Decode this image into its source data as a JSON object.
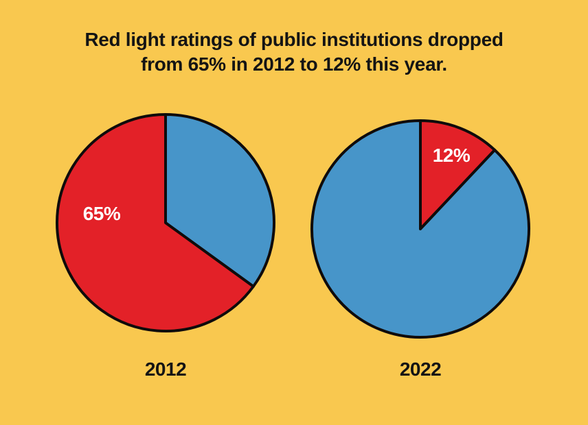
{
  "style": {
    "background_color": "#F9C84F",
    "red": "#E32128",
    "blue": "#4795C9",
    "outline_color": "#0F0B0B",
    "title_color": "#141414",
    "pct_label_color": "#FFFFFF"
  },
  "title": {
    "lines": [
      "Red light ratings of public institutions dropped",
      "from 65% in 2012 to 12% this year."
    ],
    "full": "Red light ratings of public institutions dropped from 65% in 2012 to 12% this year."
  },
  "chart_data": [
    {
      "type": "pie",
      "title": "2012",
      "start_angle_deg": 0,
      "direction": "clockwise",
      "legend_position": "none",
      "slices": [
        {
          "name": "other-ratings",
          "value": 35,
          "color": "#4795C9",
          "label": ""
        },
        {
          "name": "red-light-rating",
          "value": 65,
          "color": "#E32128",
          "label": "65%"
        }
      ]
    },
    {
      "type": "pie",
      "title": "2022",
      "start_angle_deg": 0,
      "direction": "clockwise",
      "legend_position": "none",
      "slices": [
        {
          "name": "red-light-rating",
          "value": 12,
          "color": "#E32128",
          "label": "12%"
        },
        {
          "name": "other-ratings",
          "value": 88,
          "color": "#4795C9",
          "label": ""
        }
      ]
    }
  ]
}
